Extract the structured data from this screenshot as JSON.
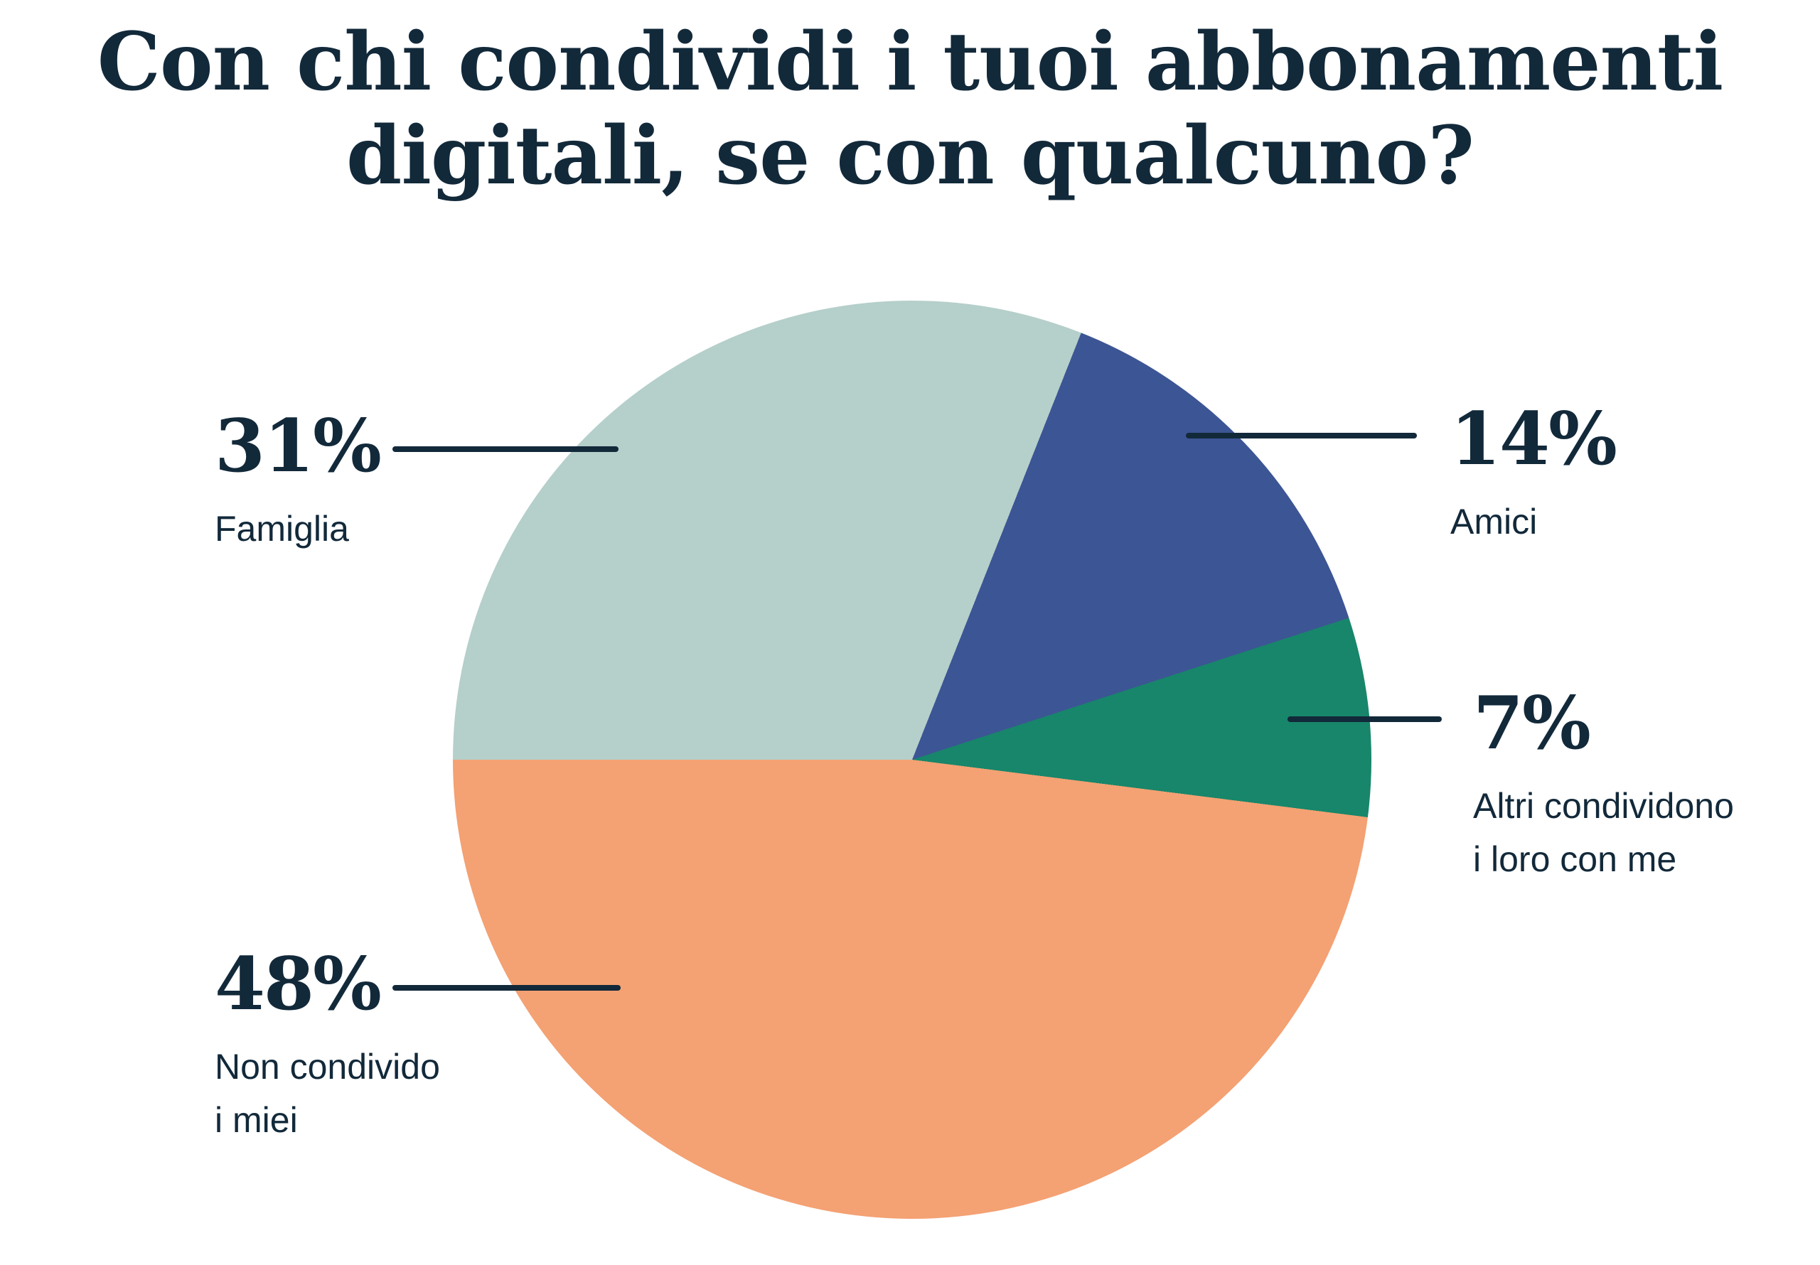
{
  "title": {
    "line1": "Con chi condividi i tuoi abbonamenti",
    "line2": "digitali, se con qualcuno?"
  },
  "colors": {
    "background": "#FFFFFF",
    "text": "#12293A",
    "callout_line": "#12293A"
  },
  "chart_data": {
    "type": "pie",
    "title": "Con chi condividi i tuoi abbonamenti digitali, se con qualcuno?",
    "unit": "%",
    "start_angle_deg": 270,
    "direction": "clockwise",
    "legend_position": "callout-labels",
    "slices": [
      {
        "name": "Famiglia",
        "value": 31,
        "percent_label": "31%",
        "label_lines": [
          "Famiglia"
        ],
        "color": "#B5CFCA",
        "label_side": "left"
      },
      {
        "name": "Amici",
        "value": 14,
        "percent_label": "14%",
        "label_lines": [
          "Amici"
        ],
        "color": "#3C5594",
        "label_side": "right"
      },
      {
        "name": "Altri condividono i loro con me",
        "value": 7,
        "percent_label": "7%",
        "label_lines": [
          "Altri condividono",
          "i loro con me"
        ],
        "color": "#17866A",
        "label_side": "right"
      },
      {
        "name": "Non condivido i miei",
        "value": 48,
        "percent_label": "48%",
        "label_lines": [
          "Non condivido",
          "i miei"
        ],
        "color": "#F4A173",
        "label_side": "left"
      }
    ]
  }
}
